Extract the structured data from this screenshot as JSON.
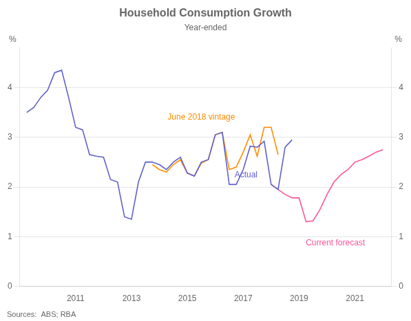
{
  "chart_data": {
    "type": "line",
    "title": "Household Consumption Growth",
    "subtitle": "Year-ended",
    "ylabel": "%",
    "y2label": "%",
    "source": "Sources:  ABS; RBA",
    "xlim": [
      2009.0,
      2022.3
    ],
    "xticks": [
      2011,
      2013,
      2015,
      2017,
      2019,
      2021
    ],
    "ylim": [
      0,
      4.8
    ],
    "yticks": [
      0,
      1,
      2,
      3,
      4
    ],
    "y2lim": [
      0,
      4.8
    ],
    "y2ticks": [
      0,
      1,
      2,
      3,
      4
    ],
    "grid": true,
    "series": [
      {
        "color": "#6060cc",
        "x": [
          2009.25,
          2009.5,
          2009.75,
          2010.0,
          2010.25,
          2010.5,
          2010.75,
          2011.0,
          2011.25,
          2011.5,
          2011.75,
          2012.0,
          2012.25,
          2012.5,
          2012.75,
          2013.0,
          2013.25,
          2013.5,
          2013.75,
          2014.0,
          2014.25,
          2014.5,
          2014.75,
          2015.0,
          2015.25,
          2015.5,
          2015.75,
          2016.0,
          2016.25,
          2016.5,
          2016.75,
          2017.0,
          2017.25,
          2017.5,
          2017.75,
          2018.0,
          2018.25,
          2018.5,
          2018.75
        ],
        "values": [
          3.5,
          3.6,
          3.8,
          3.95,
          4.3,
          4.35,
          3.8,
          3.2,
          3.15,
          2.65,
          2.62,
          2.6,
          2.15,
          2.1,
          1.4,
          1.35,
          2.1,
          2.5,
          2.5,
          2.45,
          2.35,
          2.5,
          2.6,
          2.28,
          2.22,
          2.5,
          2.55,
          3.05,
          3.1,
          2.05,
          2.05,
          2.35,
          2.82,
          2.8,
          2.92,
          2.05,
          1.95,
          2.8,
          2.95
        ]
      },
      {
        "color": "#ff8c00",
        "x": [
          2013.75,
          2014.0,
          2014.25,
          2014.5,
          2014.75,
          2015.0,
          2015.25,
          2015.5,
          2015.75,
          2016.0,
          2016.25,
          2016.5,
          2016.75,
          2017.0,
          2017.25,
          2017.5,
          2017.75,
          2018.0,
          2018.25
        ],
        "values": [
          2.45,
          2.35,
          2.3,
          2.45,
          2.55,
          2.28,
          2.22,
          2.48,
          2.55,
          3.05,
          3.1,
          2.35,
          2.4,
          2.7,
          3.05,
          2.62,
          3.2,
          3.2,
          2.65
        ]
      },
      {
        "color": "#ff5599",
        "x": [
          2018.0,
          2018.25,
          2018.5,
          2018.75,
          2019.0,
          2019.25,
          2019.5,
          2019.75,
          2020.0,
          2020.25,
          2020.5,
          2020.75,
          2021.0,
          2021.25,
          2021.5,
          2021.75,
          2022.0
        ],
        "values": [
          2.05,
          1.95,
          1.85,
          1.78,
          1.78,
          1.3,
          1.32,
          1.55,
          1.85,
          2.1,
          2.25,
          2.35,
          2.5,
          2.55,
          2.62,
          2.7,
          2.75
        ]
      }
    ],
    "annotations": [
      {
        "text": "June 2018 vintage",
        "x": 2015.5,
        "y": 3.35,
        "color": "#ff8c00"
      },
      {
        "text": "Actual",
        "x": 2017.1,
        "y": 2.2,
        "color": "#6060cc"
      },
      {
        "text": "Current forecast",
        "x": 2020.3,
        "y": 0.82,
        "color": "#ff5599"
      }
    ]
  }
}
